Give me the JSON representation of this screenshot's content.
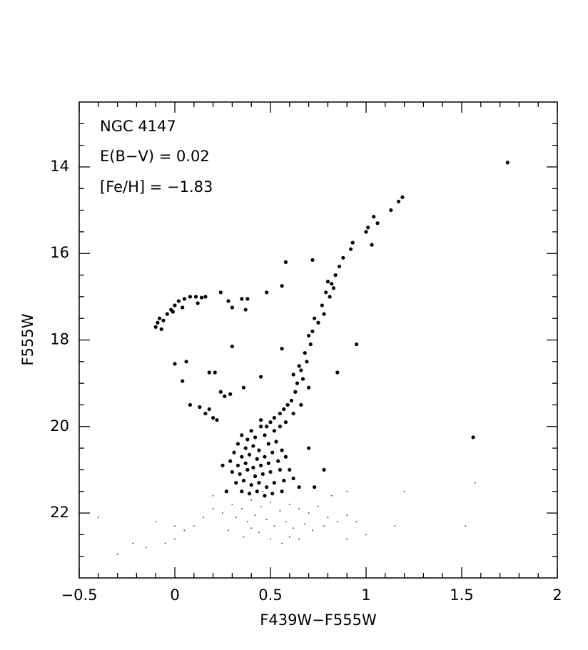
{
  "chart_data": {
    "type": "scatter",
    "annotations": [
      "NGC 4147",
      "E(B−V) = 0.02",
      "[Fe/H] = −1.83"
    ],
    "xlabel": "F439W−F555W",
    "ylabel": "F555W",
    "xlim": [
      -0.5,
      2
    ],
    "ylim": [
      12.5,
      23.5
    ],
    "y_inverted": true,
    "xticks": [
      {
        "value": -0.5,
        "label": "−0.5"
      },
      0,
      0.5,
      1,
      1.5,
      2
    ],
    "yticks": [
      14,
      16,
      18,
      20,
      22
    ],
    "xminorticks": [
      -0.4,
      -0.3,
      -0.2,
      -0.1,
      0.1,
      0.2,
      0.3,
      0.4,
      0.6,
      0.7,
      0.8,
      0.9,
      1.1,
      1.2,
      1.3,
      1.4,
      1.6,
      1.7,
      1.8,
      1.9
    ],
    "yminorticks": [
      13,
      13.5,
      14.5,
      15,
      15.5,
      16.5,
      17,
      17.5,
      18.5,
      19,
      19.5,
      20.5,
      21,
      21.5,
      22.5,
      23
    ],
    "series": [
      {
        "color": "#000000",
        "marker_size": 2.6,
        "x": [
          1.74,
          1.19,
          1.17,
          1.13,
          1.04,
          1.06,
          1.01,
          1.0,
          1.03,
          0.93,
          0.92,
          0.88,
          0.86,
          0.84,
          0.82,
          0.8,
          0.83,
          0.79,
          0.81,
          0.77,
          0.78,
          0.75,
          0.73,
          0.72,
          0.7,
          0.71,
          0.68,
          0.69,
          0.66,
          0.67,
          0.64,
          0.63,
          0.61,
          0.59,
          0.57,
          0.55,
          0.52,
          0.5,
          0.48,
          0.65,
          0.7,
          0.62,
          0.72,
          0.58,
          0.48,
          0.56,
          0.95,
          0.85,
          0.56,
          1.56,
          -0.1,
          -0.09,
          -0.08,
          -0.06,
          -0.04,
          -0.02,
          0.0,
          0.02,
          0.05,
          0.08,
          0.11,
          0.14,
          0.16,
          0.12,
          0.24,
          0.28,
          0.3,
          0.35,
          0.38,
          0.37,
          -0.01,
          -0.07,
          0.04,
          0.0,
          0.06,
          0.04,
          0.18,
          0.21,
          0.24,
          0.26,
          0.29,
          0.3,
          0.08,
          0.13,
          0.16,
          0.18,
          0.2,
          0.22,
          0.36,
          0.45,
          0.4,
          0.45,
          0.35,
          0.38,
          0.42,
          0.47,
          0.52,
          0.55,
          0.33,
          0.37,
          0.41,
          0.44,
          0.49,
          0.53,
          0.31,
          0.35,
          0.39,
          0.43,
          0.47,
          0.51,
          0.56,
          0.29,
          0.33,
          0.37,
          0.41,
          0.45,
          0.49,
          0.54,
          0.58,
          0.3,
          0.34,
          0.38,
          0.42,
          0.46,
          0.5,
          0.55,
          0.6,
          0.32,
          0.36,
          0.4,
          0.44,
          0.48,
          0.52,
          0.57,
          0.62,
          0.35,
          0.39,
          0.43,
          0.47,
          0.51,
          0.56,
          0.65,
          0.27,
          0.25,
          0.73,
          0.45,
          0.58,
          0.62,
          0.66,
          0.78,
          0.7
        ],
        "values": [
          13.9,
          14.7,
          14.8,
          15.0,
          15.15,
          15.3,
          15.4,
          15.5,
          15.8,
          15.75,
          15.9,
          16.1,
          16.3,
          16.5,
          16.7,
          16.65,
          16.8,
          16.9,
          17.0,
          17.2,
          17.4,
          17.6,
          17.5,
          17.8,
          17.9,
          18.1,
          18.3,
          18.5,
          18.7,
          18.9,
          19.0,
          19.2,
          19.4,
          19.5,
          19.6,
          19.7,
          19.8,
          19.9,
          20.0,
          18.6,
          19.1,
          18.8,
          16.15,
          16.2,
          16.9,
          16.75,
          18.1,
          18.75,
          18.2,
          20.25,
          17.7,
          17.6,
          17.5,
          17.55,
          17.4,
          17.3,
          17.2,
          17.1,
          17.05,
          17.0,
          17.0,
          17.02,
          17.0,
          17.15,
          16.9,
          17.1,
          17.25,
          17.05,
          17.05,
          17.3,
          17.35,
          17.75,
          17.25,
          18.55,
          18.5,
          18.95,
          18.75,
          18.75,
          19.2,
          19.3,
          19.25,
          18.15,
          19.5,
          19.55,
          19.7,
          19.6,
          19.8,
          19.85,
          19.1,
          18.85,
          20.1,
          20.0,
          20.2,
          20.3,
          20.25,
          20.2,
          20.1,
          20.0,
          20.4,
          20.5,
          20.45,
          20.55,
          20.4,
          20.35,
          20.6,
          20.7,
          20.65,
          20.75,
          20.7,
          20.6,
          20.55,
          20.8,
          20.9,
          20.85,
          20.95,
          20.9,
          20.85,
          20.8,
          20.7,
          21.05,
          21.1,
          21.0,
          21.15,
          21.1,
          21.05,
          21.0,
          21.0,
          21.3,
          21.25,
          21.35,
          21.3,
          21.4,
          21.3,
          21.25,
          21.2,
          21.5,
          21.55,
          21.5,
          21.6,
          21.55,
          21.5,
          21.4,
          21.5,
          20.9,
          21.4,
          19.85,
          19.9,
          19.7,
          19.5,
          21.0,
          20.5
        ]
      },
      {
        "color": "#555555",
        "marker_size": 1,
        "x": [
          0.3,
          0.35,
          0.4,
          0.45,
          0.5,
          0.55,
          0.6,
          0.65,
          0.7,
          0.75,
          0.8,
          0.85,
          0.9,
          0.25,
          0.2,
          0.32,
          0.38,
          0.42,
          0.48,
          0.52,
          0.58,
          0.62,
          0.68,
          0.72,
          0.78,
          0.95,
          1.0,
          0.15,
          0.1,
          0.05,
          0.0,
          -0.05,
          -0.15,
          -0.3,
          -0.4,
          -0.1,
          0.44,
          0.5,
          0.56,
          0.36,
          0.28,
          1.2,
          1.57,
          1.52,
          0.9,
          0.6,
          0.2,
          0.82,
          0.46,
          0.4,
          0.65,
          0.9,
          1.15,
          -0.22,
          0.0
        ],
        "values": [
          21.8,
          21.9,
          21.7,
          21.85,
          21.75,
          21.95,
          21.8,
          21.9,
          22.0,
          21.85,
          22.1,
          22.2,
          22.05,
          22.0,
          21.9,
          22.1,
          22.2,
          22.05,
          22.15,
          22.3,
          22.2,
          22.35,
          22.25,
          22.4,
          22.3,
          22.2,
          22.5,
          22.1,
          22.3,
          22.4,
          22.6,
          22.7,
          22.8,
          22.95,
          22.1,
          22.2,
          22.45,
          22.6,
          22.7,
          22.55,
          22.4,
          21.5,
          21.3,
          22.3,
          21.5,
          22.55,
          21.6,
          21.6,
          21.5,
          22.35,
          22.6,
          22.6,
          22.3,
          22.7,
          22.3
        ]
      }
    ]
  }
}
